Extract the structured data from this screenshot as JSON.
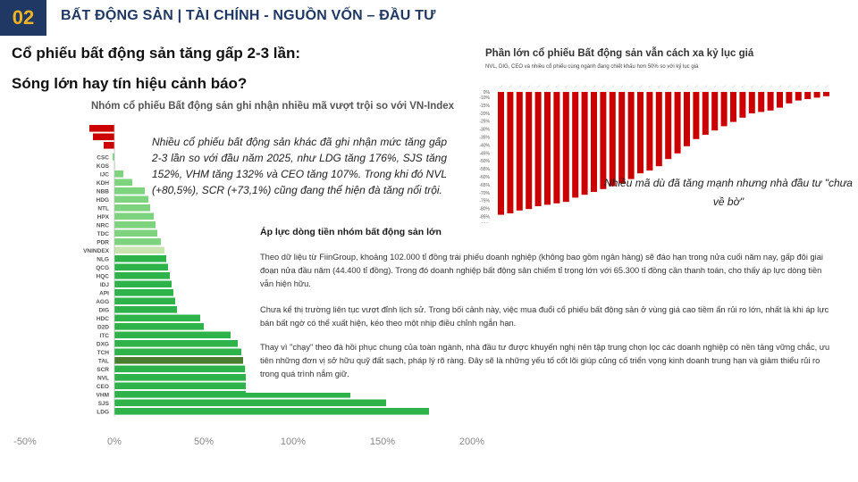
{
  "header": {
    "number": "02",
    "title": "BẤT ĐỘNG SẢN | TÀI CHÍNH - NGUỒN VỐN – ĐẦU TƯ"
  },
  "headline": {
    "line1": "Cổ phiếu bất động sản tăng gấp 2-3 lần:",
    "line2": "Sóng lớn hay tín hiệu cảnh báo?"
  },
  "left_note": "Nhiều cổ phiếu bất động sản khác đã ghi nhận mức tăng gấp 2-3 lần so với đầu năm 2025, như LDG tăng 176%, SJS tăng 152%, VHM tăng 132% và CEO tăng 107%. Trong khi đó NVL (+80,5%), SCR (+73,1%) cũng đang thể hiện đà tăng nổi trội.",
  "right_annotation": "Nhiều mã dù đã tăng mạnh nhưng nhà đầu tư \"chưa về bờ\"",
  "article": {
    "title": "Áp lực dòng tiền nhóm bất động sản lớn",
    "paragraphs": [
      "Theo dữ liệu từ FiinGroup, khoảng 102.000 tỉ đồng trái phiếu doanh nghiệp (không bao gồm ngân hàng) sẽ đáo hạn trong nửa cuối năm nay, gấp đôi giai đoạn nửa đầu năm (44.400 tỉ đồng). Trong đó doanh nghiệp bất động sản chiếm tỉ trọng lớn với 65.300 tỉ đồng cần thanh toán, cho thấy áp lực dòng tiền vẫn hiện hữu.",
      "Chưa kể thị trường liên tục vượt đỉnh lịch sử. Trong bối cảnh này, việc mua đuổi cổ phiếu bất động sản ở vùng giá cao tiềm ẩn rủi ro lớn, nhất là khi áp lực bán bất ngờ có thể xuất hiện, kéo theo một nhịp điều chỉnh ngắn hạn.",
      "Thay vì \"chạy\" theo đà hồi phục chung của toàn ngành, nhà đầu tư được khuyến nghị nên tập trung chọn lọc các doanh nghiệp có nền tảng vững chắc, ưu tiên những đơn vị sở hữu quỹ đất sạch, pháp lý rõ ràng. Đây sẽ là những yếu tố cốt lõi giúp củng cố triển vọng kinh doanh trung hạn và giảm thiểu rủi ro trong quá trình nắm giữ."
    ]
  },
  "colors": {
    "navy": "#1f3864",
    "gold": "#f0b323",
    "green": "#2db34a",
    "green_light": "#7ed37f",
    "green_dark": "#4a7d2e",
    "index_bar": "#c9e3b1",
    "red": "#cc0000"
  },
  "chart_data": [
    {
      "type": "bar",
      "orientation": "horizontal",
      "title": "Nhóm cổ phiếu Bất động sản ghi nhận nhiều mã vượt trội so với VN-Index",
      "categories": [
        "CSC",
        "KOS",
        "IJC",
        "KDH",
        "NBB",
        "HDG",
        "NTL",
        "HPX",
        "NRC",
        "TDC",
        "PDR",
        "VNINDEX",
        "NLG",
        "QCG",
        "HQC",
        "IDJ",
        "API",
        "AGG",
        "DIG",
        "HDC",
        "D2D",
        "ITC",
        "DXG",
        "TCH",
        "TAL",
        "SCR",
        "NVL",
        "CEO",
        "VHM",
        "SJS",
        "LDG"
      ],
      "values": [
        -1,
        0,
        5,
        10,
        17,
        19,
        20,
        22,
        23,
        24,
        26,
        28,
        29,
        30,
        31,
        32,
        33,
        34,
        35,
        48,
        50,
        65,
        69,
        71,
        72,
        73.1,
        80.5,
        107,
        132,
        152,
        176
      ],
      "top_red_bars": [
        -14,
        -12,
        -6
      ],
      "xticks": [
        "-50%",
        "0%",
        "50%",
        "100%",
        "150%",
        "200%"
      ],
      "xlim": [
        -50,
        200
      ],
      "legend": "none",
      "grid": false
    },
    {
      "type": "bar",
      "title": "Phần lớn cổ phiếu Bất động sản vẫn cách xa kỷ lục giá",
      "subtitle": "NVL, DIG, CEO và nhiều cổ phiếu cùng ngành đang chiết khấu hơn 50% so với kỷ lục giá",
      "values": [
        -86,
        -85,
        -83,
        -82,
        -80,
        -79,
        -78,
        -77,
        -74,
        -72,
        -70,
        -68,
        -66,
        -64,
        -61,
        -57,
        -55,
        -52,
        -47,
        -43,
        -38,
        -33,
        -30,
        -27,
        -24,
        -21,
        -18,
        -15,
        -14,
        -13,
        -11,
        -8,
        -6,
        -5,
        -4,
        -3
      ],
      "yticks": [
        "0%",
        "-10%",
        "-15%",
        "-20%",
        "-25%",
        "-30%",
        "-35%",
        "-40%",
        "-45%",
        "-50%",
        "-55%",
        "-60%",
        "-65%",
        "-70%",
        "-75%",
        "-80%",
        "-85%",
        "-90%",
        "-100%"
      ],
      "ylim": [
        -100,
        0
      ],
      "legend": "none",
      "grid": false
    }
  ]
}
